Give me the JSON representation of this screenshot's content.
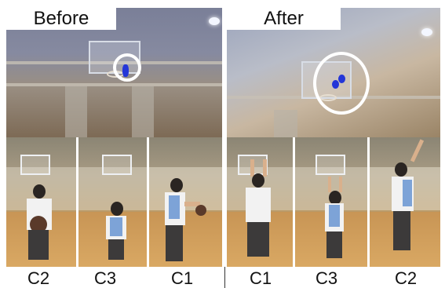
{
  "before": {
    "title": "Before"
  },
  "after": {
    "title": "After"
  },
  "labels": {
    "before": [
      "C2",
      "C3",
      "C1"
    ],
    "after": [
      "C1",
      "C3",
      "C2"
    ]
  },
  "colors": {
    "highlight": "#ffffff",
    "ball": "#2436d8"
  }
}
